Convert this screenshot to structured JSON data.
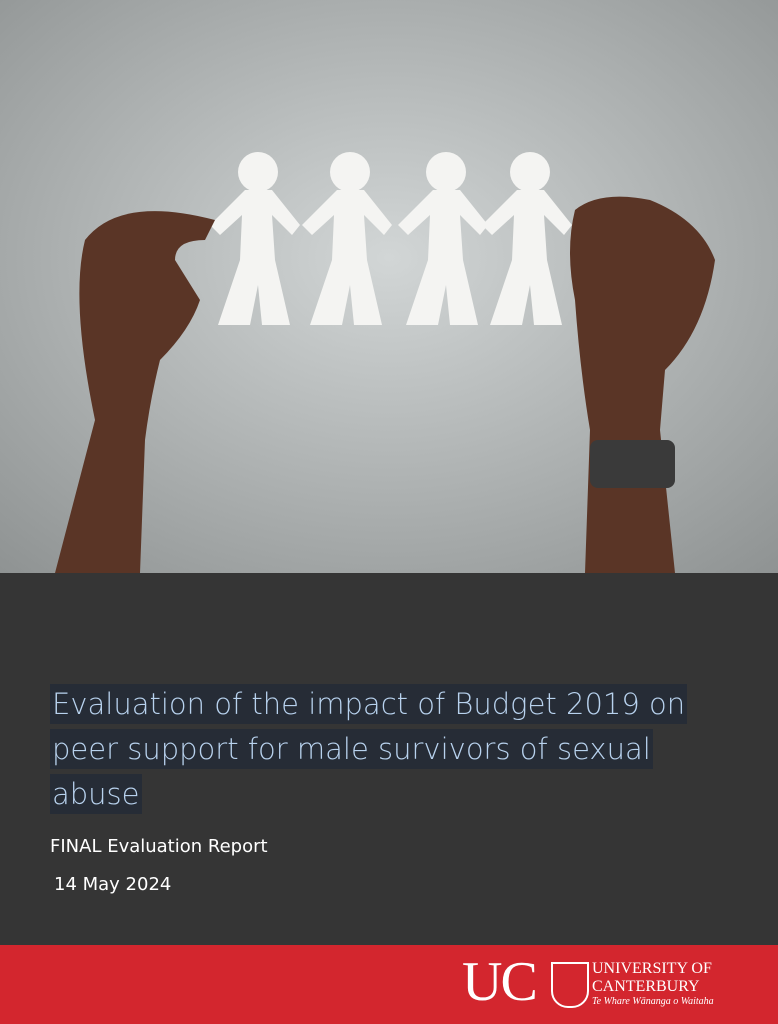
{
  "cover": {
    "title_lines": [
      "Evaluation of the impact of Budget 2019 on",
      "peer support for male survivors of sexual",
      "abuse"
    ],
    "subtitle": "FINAL Evaluation Report",
    "date": "14 May 2024",
    "logo": {
      "mark": "UC",
      "name_lines": [
        "UNIVERSITY OF",
        "CANTERBURY"
      ],
      "motto": "Te Whare Wānanga o Waitaha"
    }
  }
}
